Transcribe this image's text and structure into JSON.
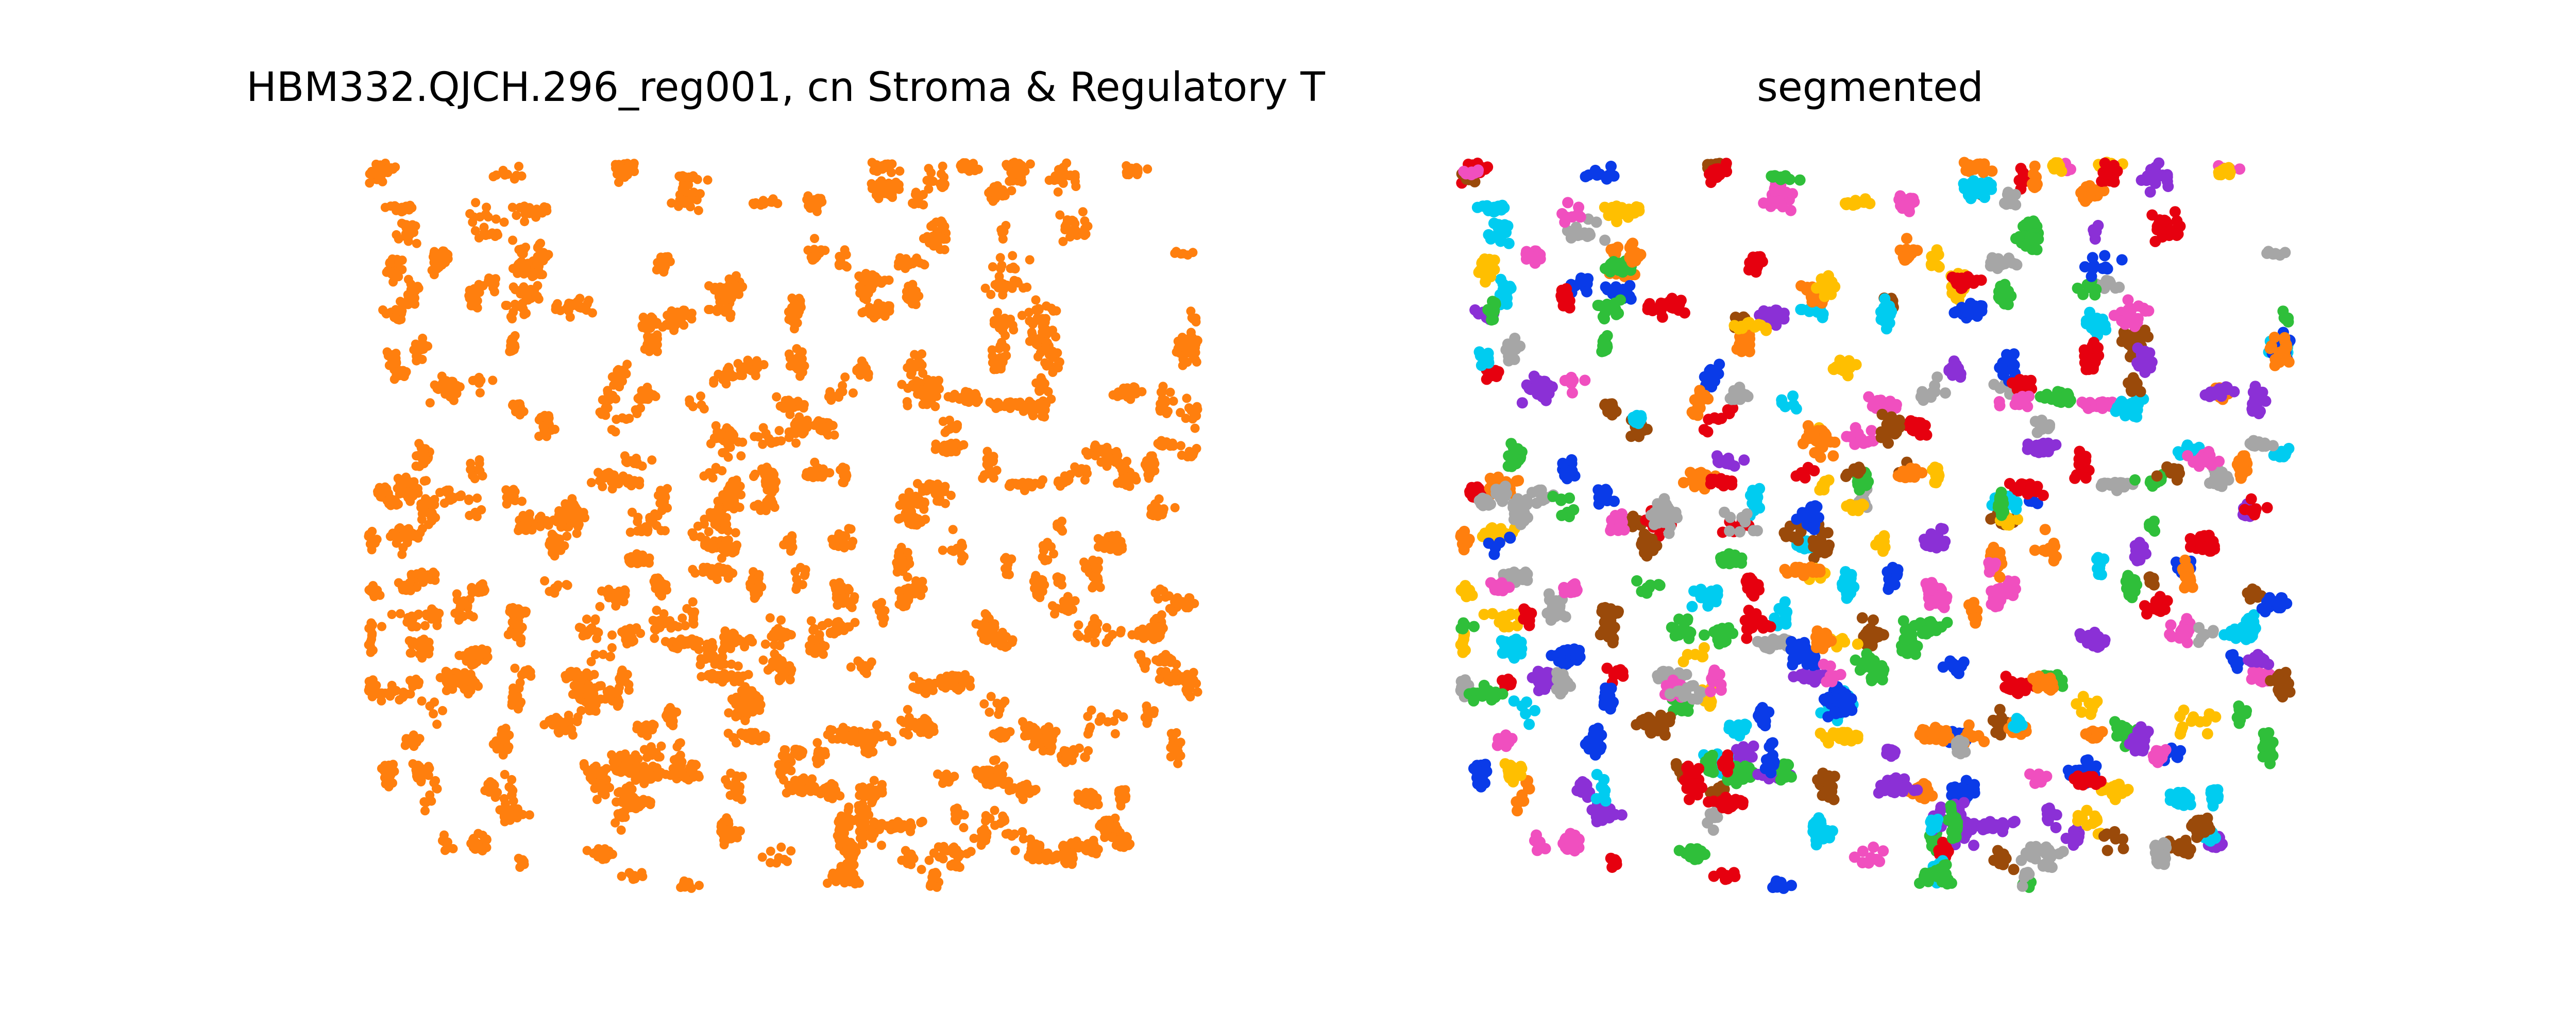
{
  "chart_data": [
    {
      "type": "scatter",
      "title": "HBM332.QJCH.296_reg001, cn Stroma & Regulatory T",
      "xlabel": "",
      "ylabel": "",
      "axes_visible": false,
      "grid": false,
      "legend": "none",
      "x_range": [
        0,
        100
      ],
      "y_range": [
        0,
        100
      ],
      "series": [
        {
          "name": "cn Stroma & Regulatory T",
          "color": "#ff7f0e",
          "approx_point_count": 6000,
          "distribution": "dense scatter over the full region; lower corners rounded off"
        }
      ]
    },
    {
      "type": "scatter",
      "title": "segmented",
      "xlabel": "",
      "ylabel": "",
      "axes_visible": false,
      "grid": false,
      "legend": "none",
      "x_range": [
        0,
        100
      ],
      "y_range": [
        0,
        100
      ],
      "segment_palette": [
        "#e6000f",
        "#0a3be8",
        "#2fbf3a",
        "#8b30d6",
        "#f04fbf",
        "#a6a6a6",
        "#9a4a0a",
        "#ff7f0e",
        "#ffbf00",
        "#00ccf0"
      ],
      "approx_segment_count": 340,
      "distribution": "same point cloud split into small clusters, each cluster drawn in one palette color"
    }
  ]
}
